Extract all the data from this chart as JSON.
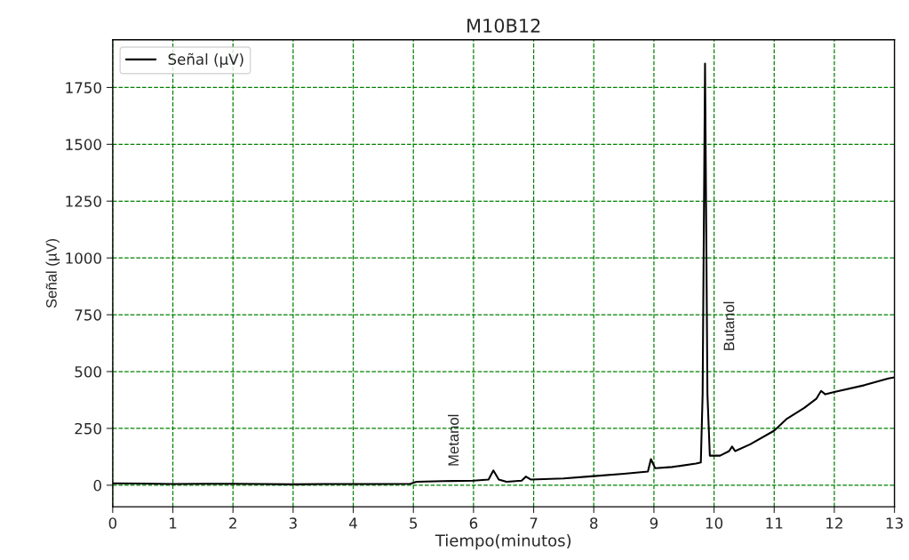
{
  "chart_data": {
    "type": "line",
    "title": "M10B12",
    "xlabel": "Tiempo(minutos)",
    "ylabel": "Señal (µV)",
    "x": [
      0,
      0.5,
      1,
      1.5,
      2,
      2.5,
      3,
      3.5,
      4,
      4.5,
      4.95,
      5.05,
      5.5,
      6.0,
      6.25,
      6.33,
      6.42,
      6.55,
      6.8,
      6.87,
      6.95,
      7.5,
      8.0,
      8.5,
      8.9,
      8.95,
      9.02,
      9.3,
      9.7,
      9.78,
      9.81,
      9.85,
      9.89,
      9.93,
      10.1,
      10.25,
      10.3,
      10.35,
      10.6,
      11.0,
      11.2,
      11.5,
      11.7,
      11.78,
      11.85,
      12.0,
      12.5,
      12.9,
      13
    ],
    "series": [
      {
        "name": "Señal (µV)",
        "color": "#000000",
        "values": [
          8,
          7,
          5,
          6,
          6,
          5,
          4,
          5,
          5,
          5,
          6,
          15,
          18,
          20,
          25,
          65,
          25,
          15,
          20,
          38,
          25,
          30,
          40,
          50,
          60,
          115,
          75,
          80,
          95,
          100,
          400,
          1855,
          400,
          130,
          130,
          150,
          170,
          150,
          180,
          240,
          290,
          340,
          380,
          415,
          400,
          410,
          440,
          470,
          475
        ]
      }
    ],
    "annotations": [
      "Metanol",
      "Butanol"
    ],
    "xlim": [
      0,
      13
    ],
    "ylim": [
      -95,
      1960
    ],
    "xticks": [
      0,
      1,
      2,
      3,
      4,
      5,
      6,
      7,
      8,
      9,
      10,
      11,
      12,
      13
    ],
    "yticks": [
      0,
      250,
      500,
      750,
      1000,
      1250,
      1500,
      1750
    ],
    "grid": true,
    "legend": "top left",
    "line_style": "solid",
    "marker": "none"
  }
}
